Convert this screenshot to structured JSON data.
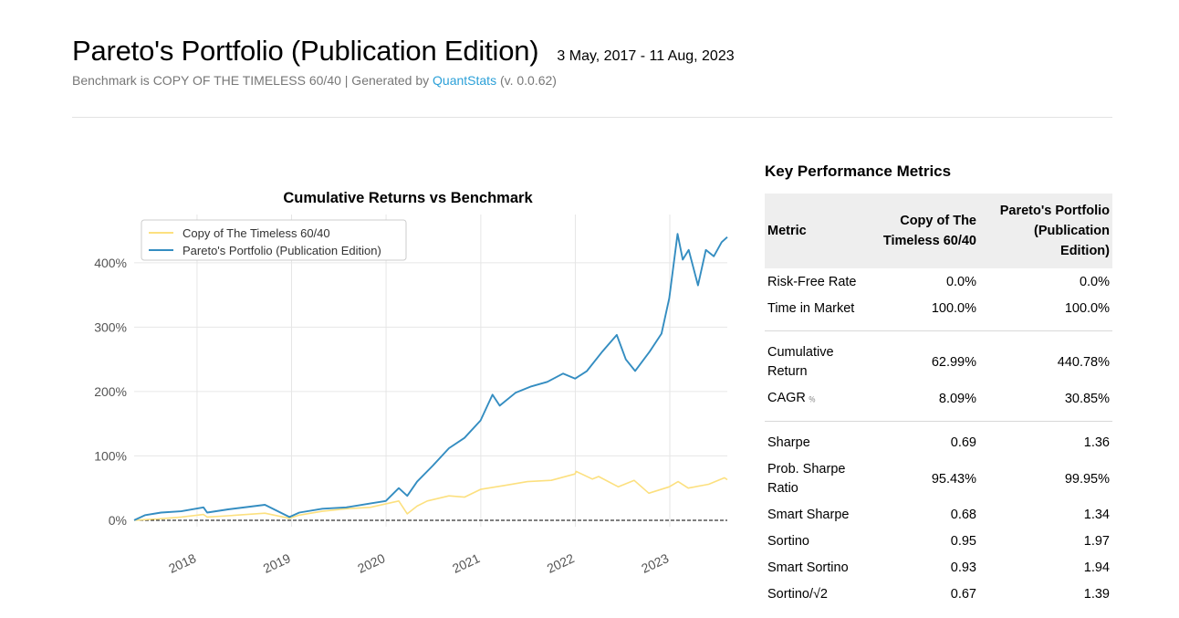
{
  "header": {
    "title": "Pareto's Portfolio (Publication Edition)",
    "date_range": "3 May, 2017 - 11 Aug, 2023",
    "subtitle_prefix": "Benchmark is COPY OF THE TIMELESS 60/40 | Generated by ",
    "subtitle_link": "QuantStats",
    "subtitle_suffix": " (v. 0.0.62)"
  },
  "chart_data": {
    "type": "line",
    "title": "Cumulative Returns vs Benchmark",
    "xlabel": "",
    "ylabel": "",
    "x_ticks": [
      "2018",
      "2019",
      "2020",
      "2021",
      "2022",
      "2023"
    ],
    "y_ticks": [
      "0%",
      "100%",
      "200%",
      "300%",
      "400%"
    ],
    "y_tick_values": [
      0,
      100,
      200,
      300,
      400
    ],
    "xlim": [
      "2017-05-03",
      "2023-08-11"
    ],
    "ylim": [
      -10,
      475
    ],
    "grid": true,
    "legend_position": "top-left",
    "baseline": 0,
    "series": [
      {
        "name": "Copy of The Timeless 60/40",
        "color": "#fce07f",
        "points": [
          [
            "2017-05-03",
            0
          ],
          [
            "2017-08-01",
            2
          ],
          [
            "2017-11-01",
            5
          ],
          [
            "2018-01-26",
            9
          ],
          [
            "2018-02-09",
            5
          ],
          [
            "2018-05-01",
            7
          ],
          [
            "2018-09-20",
            11
          ],
          [
            "2018-12-24",
            3
          ],
          [
            "2019-01-31",
            8
          ],
          [
            "2019-04-30",
            14
          ],
          [
            "2019-07-31",
            18
          ],
          [
            "2019-10-31",
            20
          ],
          [
            "2020-02-19",
            30
          ],
          [
            "2020-03-23",
            10
          ],
          [
            "2020-04-30",
            22
          ],
          [
            "2020-06-08",
            30
          ],
          [
            "2020-08-31",
            38
          ],
          [
            "2020-10-30",
            36
          ],
          [
            "2020-12-31",
            48
          ],
          [
            "2021-03-31",
            54
          ],
          [
            "2021-06-30",
            60
          ],
          [
            "2021-09-30",
            62
          ],
          [
            "2021-12-31",
            72
          ],
          [
            "2022-01-04",
            76
          ],
          [
            "2022-03-08",
            64
          ],
          [
            "2022-04-01",
            68
          ],
          [
            "2022-06-16",
            52
          ],
          [
            "2022-08-16",
            62
          ],
          [
            "2022-10-12",
            42
          ],
          [
            "2022-12-30",
            52
          ],
          [
            "2023-02-02",
            60
          ],
          [
            "2023-03-13",
            50
          ],
          [
            "2023-05-31",
            56
          ],
          [
            "2023-07-31",
            66
          ],
          [
            "2023-08-11",
            63
          ]
        ]
      },
      {
        "name": "Pareto's Portfolio (Publication Edition)",
        "color": "#348dc1",
        "points": [
          [
            "2017-05-03",
            0
          ],
          [
            "2017-06-15",
            8
          ],
          [
            "2017-08-15",
            12
          ],
          [
            "2017-11-01",
            14
          ],
          [
            "2018-01-26",
            20
          ],
          [
            "2018-02-09",
            12
          ],
          [
            "2018-05-01",
            17
          ],
          [
            "2018-09-20",
            24
          ],
          [
            "2018-12-24",
            5
          ],
          [
            "2019-01-31",
            12
          ],
          [
            "2019-04-30",
            18
          ],
          [
            "2019-07-31",
            20
          ],
          [
            "2019-10-31",
            26
          ],
          [
            "2019-12-31",
            30
          ],
          [
            "2020-02-19",
            50
          ],
          [
            "2020-03-23",
            38
          ],
          [
            "2020-04-30",
            60
          ],
          [
            "2020-06-30",
            85
          ],
          [
            "2020-08-31",
            112
          ],
          [
            "2020-10-30",
            128
          ],
          [
            "2020-12-31",
            155
          ],
          [
            "2021-02-15",
            195
          ],
          [
            "2021-03-15",
            178
          ],
          [
            "2021-05-15",
            198
          ],
          [
            "2021-07-15",
            208
          ],
          [
            "2021-09-15",
            215
          ],
          [
            "2021-11-15",
            228
          ],
          [
            "2021-12-31",
            220
          ],
          [
            "2022-02-15",
            232
          ],
          [
            "2022-04-15",
            262
          ],
          [
            "2022-06-10",
            288
          ],
          [
            "2022-07-15",
            250
          ],
          [
            "2022-08-20",
            232
          ],
          [
            "2022-10-15",
            262
          ],
          [
            "2022-11-30",
            290
          ],
          [
            "2022-12-30",
            345
          ],
          [
            "2023-01-31",
            445
          ],
          [
            "2023-02-20",
            405
          ],
          [
            "2023-03-15",
            420
          ],
          [
            "2023-04-20",
            365
          ],
          [
            "2023-05-20",
            420
          ],
          [
            "2023-06-20",
            410
          ],
          [
            "2023-07-20",
            432
          ],
          [
            "2023-08-11",
            440
          ]
        ]
      }
    ]
  },
  "metrics": {
    "heading": "Key Performance Metrics",
    "columns": [
      "Metric",
      "Copy of The Timeless 60/40",
      "Pareto's Portfolio (Publication Edition)"
    ],
    "rows": [
      {
        "label": "Risk-Free Rate",
        "benchmark": "0.0%",
        "strategy": "0.0%"
      },
      {
        "label": "Time in Market",
        "benchmark": "100.0%",
        "strategy": "100.0%"
      },
      {
        "label": "Cumulative Return",
        "benchmark": "62.99%",
        "strategy": "440.78%"
      },
      {
        "label": "CAGR",
        "suffix": "﹪",
        "benchmark": "8.09%",
        "strategy": "30.85%"
      },
      {
        "label": "Sharpe",
        "benchmark": "0.69",
        "strategy": "1.36"
      },
      {
        "label": "Prob. Sharpe Ratio",
        "benchmark": "95.43%",
        "strategy": "99.95%"
      },
      {
        "label": "Smart Sharpe",
        "benchmark": "0.68",
        "strategy": "1.34"
      },
      {
        "label": "Sortino",
        "benchmark": "0.95",
        "strategy": "1.97"
      },
      {
        "label": "Smart Sortino",
        "benchmark": "0.93",
        "strategy": "1.94"
      },
      {
        "label": "Sortino/√2",
        "benchmark": "0.67",
        "strategy": "1.39"
      }
    ]
  }
}
